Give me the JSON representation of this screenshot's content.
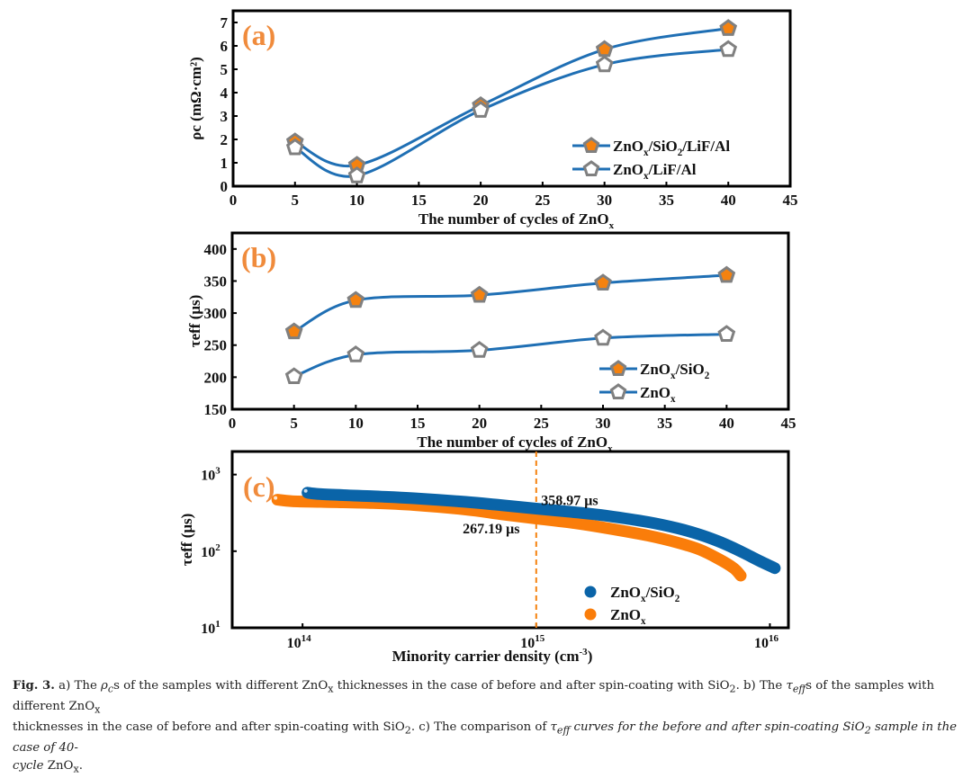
{
  "colors": {
    "line": "#1f6fb4",
    "marker_edge": "#808080",
    "marker_fill_filled": "#f5820f",
    "marker_fill_open": "#ffffff",
    "panel_label": "#f08b3c",
    "blue_scatter": "#0a64a8",
    "orange_scatter": "#fa7d0a",
    "dashed": "#f5820f"
  },
  "chart_data": [
    {
      "id": "a",
      "type": "line",
      "panel_label": "(a)",
      "xlabel": "The number of cycles of ZnO",
      "xlabel_sub": "x",
      "ylabel": "ρc (mΩ·cm²)",
      "xlim": [
        0,
        45
      ],
      "ylim": [
        0,
        7.5
      ],
      "xticks": [
        0,
        5,
        10,
        15,
        20,
        25,
        30,
        35,
        40,
        45
      ],
      "yticks": [
        0,
        1,
        2,
        3,
        4,
        5,
        6,
        7
      ],
      "legend_position": "lower-right",
      "x": [
        5,
        10,
        20,
        30,
        40
      ],
      "series": [
        {
          "name": "ZnOx/SiO2/LiF/Al",
          "legend_parts": [
            "ZnO",
            "x",
            "/SiO",
            "2",
            "/LiF/Al"
          ],
          "marker": "filled-pentagon",
          "values": [
            1.9,
            0.9,
            3.45,
            5.85,
            6.75
          ]
        },
        {
          "name": "ZnOx/LiF/Al",
          "legend_parts": [
            "ZnO",
            "x",
            "/LiF/Al",
            "",
            ""
          ],
          "marker": "open-pentagon",
          "values": [
            1.65,
            0.45,
            3.25,
            5.2,
            5.85
          ]
        }
      ]
    },
    {
      "id": "b",
      "type": "line",
      "panel_label": "(b)",
      "xlabel": "The number of cycles of ZnO",
      "xlabel_sub": "x",
      "ylabel": "τeff (μs)",
      "xlim": [
        0,
        45
      ],
      "ylim": [
        150,
        425
      ],
      "xticks": [
        0,
        5,
        10,
        15,
        20,
        25,
        30,
        35,
        40,
        45
      ],
      "yticks": [
        150,
        200,
        250,
        300,
        350,
        400
      ],
      "legend_position": "lower-right",
      "x": [
        5,
        10,
        20,
        30,
        40
      ],
      "series": [
        {
          "name": "ZnOx/SiO2",
          "legend_parts": [
            "ZnO",
            "x",
            "/SiO",
            "2",
            ""
          ],
          "marker": "filled-pentagon",
          "values": [
            271,
            320,
            328,
            347,
            359
          ]
        },
        {
          "name": "ZnOx",
          "legend_parts": [
            "ZnO",
            "x",
            "",
            "",
            ""
          ],
          "marker": "open-pentagon",
          "values": [
            201,
            235,
            242,
            261,
            267
          ]
        }
      ]
    },
    {
      "id": "c",
      "type": "scatter",
      "panel_label": "(c)",
      "xlabel": "Minority carrier density (cm",
      "xlabel_sup": "-3",
      "ylabel": "τeff (μs)",
      "xscale": "log",
      "yscale": "log",
      "xlim": [
        50000000000000.0,
        1.2e+16
      ],
      "ylim": [
        10,
        2000
      ],
      "xticks": [
        {
          "value": 100000000000000.0,
          "base": "10",
          "exp": "14"
        },
        {
          "value": 1000000000000000.0,
          "base": "10",
          "exp": "15"
        },
        {
          "value": 1e+16,
          "base": "10",
          "exp": "16"
        }
      ],
      "yticks": [
        {
          "value": 10,
          "base": "10",
          "exp": "1"
        },
        {
          "value": 100,
          "base": "10",
          "exp": "2"
        },
        {
          "value": 1000,
          "base": "10",
          "exp": "3"
        }
      ],
      "legend_position": "lower-right",
      "vline_x": 1000000000000000.0,
      "annotations": [
        {
          "text": "358.97 μs",
          "x": 1050000000000000.0,
          "y": 400,
          "anchor": "start"
        },
        {
          "text": "267.19 μs",
          "x": 850000000000000.0,
          "y": 170,
          "anchor": "end"
        }
      ],
      "series": [
        {
          "name": "ZnOx/SiO2",
          "legend_parts": [
            "ZnO",
            "x",
            "/SiO",
            "2"
          ],
          "color_key": "blue_scatter",
          "points": [
            [
              105000000000000.0,
              580
            ],
            [
              120000000000000.0,
              555
            ],
            [
              200000000000000.0,
              520
            ],
            [
              300000000000000.0,
              490
            ],
            [
              500000000000000.0,
              440
            ],
            [
              700000000000000.0,
              400
            ],
            [
              1000000000000000.0,
              359
            ],
            [
              1500000000000000.0,
              320
            ],
            [
              2000000000000000.0,
              290
            ],
            [
              3000000000000000.0,
              240
            ],
            [
              4000000000000000.0,
              200
            ],
            [
              5000000000000000.0,
              165
            ],
            [
              6000000000000000.0,
              135
            ],
            [
              7000000000000000.0,
              110
            ],
            [
              8000000000000000.0,
              90
            ],
            [
              9000000000000000.0,
              75
            ],
            [
              1.05e+16,
              60
            ]
          ]
        },
        {
          "name": "ZnOx",
          "legend_parts": [
            "ZnO",
            "x",
            "",
            ""
          ],
          "color_key": "orange_scatter",
          "points": [
            [
              78000000000000.0,
              470
            ],
            [
              90000000000000.0,
              450
            ],
            [
              120000000000000.0,
              440
            ],
            [
              200000000000000.0,
              425
            ],
            [
              300000000000000.0,
              400
            ],
            [
              500000000000000.0,
              350
            ],
            [
              700000000000000.0,
              305
            ],
            [
              1000000000000000.0,
              267
            ],
            [
              1500000000000000.0,
              230
            ],
            [
              2000000000000000.0,
              200
            ],
            [
              3000000000000000.0,
              160
            ],
            [
              4000000000000000.0,
              130
            ],
            [
              5000000000000000.0,
              105
            ],
            [
              6000000000000000.0,
              80
            ],
            [
              7000000000000000.0,
              60
            ],
            [
              7500000000000000.0,
              48
            ]
          ]
        }
      ]
    }
  ],
  "caption": {
    "fig_label": "Fig. 3.",
    "line1": " a) The ρcs of the samples with different ZnOx thicknesses in the case of before and after spin-coating with SiO2. b) The τeffs of the samples with different ZnOx",
    "line2": "thicknesses in the case of before and after spin-coating with SiO2. c) The comparison of τeff curves for the before and after spin-coating SiO2 sample in the case of 40-",
    "line3": "cycle ZnOx."
  }
}
